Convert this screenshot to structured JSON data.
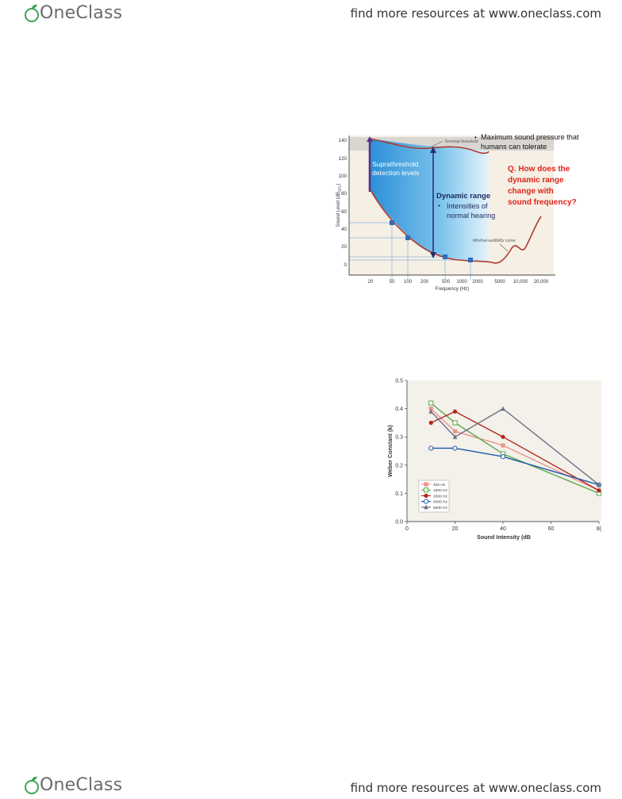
{
  "header": {
    "brand": "OneClass",
    "resources": "find more resources at www.oneclass.com"
  },
  "footer": {
    "brand": "OneClass",
    "resources": "find more resources at www.oneclass.com"
  },
  "figure1": {
    "y_ticks": [
      "140",
      "120",
      "100",
      "80",
      "60",
      "40",
      "20",
      "0"
    ],
    "x_ticks": [
      "20",
      "50",
      "100",
      "200",
      "500",
      "1000",
      "2000",
      "5000",
      "10,000",
      "20,000"
    ],
    "ylabel": "Sound Level (dB",
    "ylabel_sub": "SPL",
    "xlabel": "Frequency (Hz)",
    "terminal_label": "Terminal threshold",
    "minimal_label": "Minimal audibility curve",
    "max_pressure_bullet": "•",
    "max_pressure_line1": "Maximum sound pressure that",
    "max_pressure_line2": "humans can tolerate",
    "suprathreshold_line1": "Suprathreshold",
    "suprathreshold_line2": "detection levels",
    "dynamic_range": "Dynamic range",
    "intensities_bullet": "•",
    "intensities_line1": "Intensities of",
    "intensities_line2": "normal hearing",
    "question_line1": "Q. How does the",
    "question_line2": "dynamic range",
    "question_line3": "change with",
    "question_line4": "sound frequency?",
    "colors": {
      "curve": "#b03a2e",
      "fill": "#3ea3de",
      "question": "#e0251b",
      "arrow": "#2b2b6b",
      "axis": "#444444"
    }
  },
  "chart_data": {
    "type": "line",
    "x": [
      10,
      20,
      40,
      80
    ],
    "xlim": [
      0,
      80
    ],
    "ylim": [
      0.0,
      0.5
    ],
    "y_ticks": [
      "0.0",
      "0.1",
      "0.2",
      "0.3",
      "0.4",
      "0.5"
    ],
    "x_ticks": [
      "0",
      "20",
      "40",
      "60",
      "8("
    ],
    "ylabel": "Weber Constant (k)",
    "xlabel": "Sound Intensity (dB",
    "legend_position": "bottom-left",
    "series": [
      {
        "name": "400 Hz",
        "values": [
          0.4,
          0.32,
          0.27,
          0.11
        ],
        "color": "#e8948b",
        "marker": "square-filled"
      },
      {
        "name": "1000 Hz",
        "values": [
          0.42,
          0.35,
          0.24,
          0.1
        ],
        "color": "#5aa84b",
        "marker": "square-open"
      },
      {
        "name": "2000 Hz",
        "values": [
          0.35,
          0.39,
          0.3,
          0.11
        ],
        "color": "#b3261e",
        "marker": "circle-filled"
      },
      {
        "name": "4000 Hz",
        "values": [
          0.26,
          0.26,
          0.23,
          0.13
        ],
        "color": "#1f5aa8",
        "marker": "circle-open"
      },
      {
        "name": "8000 Hz",
        "values": [
          0.39,
          0.3,
          0.4,
          0.13
        ],
        "color": "#6f6f86",
        "marker": "triangle"
      }
    ]
  }
}
